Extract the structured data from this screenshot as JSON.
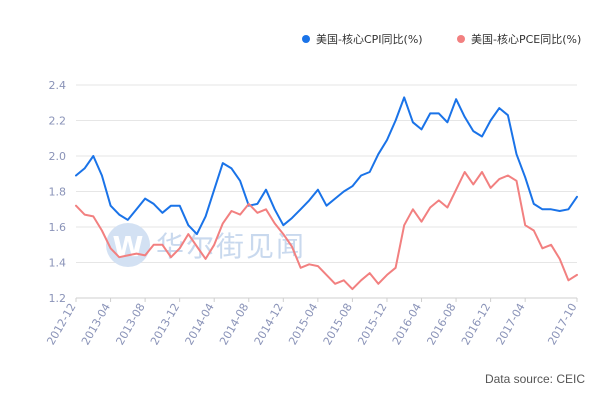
{
  "chart_data": {
    "type": "line",
    "x": [
      "2012-12",
      "2013-01",
      "2013-02",
      "2013-03",
      "2013-04",
      "2013-05",
      "2013-06",
      "2013-07",
      "2013-08",
      "2013-09",
      "2013-10",
      "2013-11",
      "2013-12",
      "2014-01",
      "2014-02",
      "2014-03",
      "2014-04",
      "2014-05",
      "2014-06",
      "2014-07",
      "2014-08",
      "2014-09",
      "2014-10",
      "2014-11",
      "2014-12",
      "2015-01",
      "2015-02",
      "2015-03",
      "2015-04",
      "2015-05",
      "2015-06",
      "2015-07",
      "2015-08",
      "2015-09",
      "2015-10",
      "2015-11",
      "2015-12",
      "2016-01",
      "2016-02",
      "2016-03",
      "2016-04",
      "2016-05",
      "2016-06",
      "2016-07",
      "2016-08",
      "2016-09",
      "2016-10",
      "2016-11",
      "2016-12",
      "2017-01",
      "2017-02",
      "2017-03",
      "2017-04",
      "2017-05",
      "2017-06",
      "2017-07",
      "2017-08",
      "2017-09",
      "2017-10"
    ],
    "x_ticks": [
      "2012-12",
      "2013-04",
      "2013-08",
      "2013-12",
      "2014-04",
      "2014-08",
      "2014-12",
      "2015-04",
      "2015-08",
      "2015-12",
      "2016-04",
      "2016-08",
      "2016-12",
      "2017-04",
      "2017-10"
    ],
    "series": [
      {
        "name": "美国-核心CPI同比(%)",
        "color": "#1a73e8",
        "values": [
          1.89,
          1.93,
          2.0,
          1.89,
          1.72,
          1.67,
          1.64,
          1.7,
          1.76,
          1.73,
          1.68,
          1.72,
          1.72,
          1.61,
          1.56,
          1.66,
          1.81,
          1.96,
          1.93,
          1.86,
          1.72,
          1.73,
          1.81,
          1.7,
          1.61,
          1.65,
          1.7,
          1.75,
          1.81,
          1.72,
          1.76,
          1.8,
          1.83,
          1.89,
          1.91,
          2.01,
          2.09,
          2.2,
          2.33,
          2.19,
          2.15,
          2.24,
          2.24,
          2.19,
          2.32,
          2.22,
          2.14,
          2.11,
          2.2,
          2.27,
          2.23,
          2.01,
          1.88,
          1.73,
          1.7,
          1.7,
          1.69,
          1.7,
          1.77
        ]
      },
      {
        "name": "美国-核心PCE同比(%)",
        "color": "#f28080",
        "values": [
          1.72,
          1.67,
          1.66,
          1.58,
          1.48,
          1.43,
          1.44,
          1.45,
          1.44,
          1.5,
          1.5,
          1.43,
          1.48,
          1.56,
          1.49,
          1.42,
          1.5,
          1.62,
          1.69,
          1.67,
          1.73,
          1.68,
          1.7,
          1.62,
          1.56,
          1.49,
          1.37,
          1.39,
          1.38,
          1.33,
          1.28,
          1.3,
          1.25,
          1.3,
          1.34,
          1.28,
          1.33,
          1.37,
          1.61,
          1.7,
          1.63,
          1.71,
          1.75,
          1.71,
          1.81,
          1.91,
          1.84,
          1.91,
          1.82,
          1.87,
          1.89,
          1.86,
          1.61,
          1.58,
          1.48,
          1.5,
          1.42,
          1.3,
          1.33
        ]
      }
    ],
    "ylim": [
      1.2,
      2.4
    ],
    "yticks": [
      "1.2",
      "1.4",
      "1.6",
      "1.8",
      "2.0",
      "2.2",
      "2.4"
    ],
    "grid": true,
    "legend_position": "top-right",
    "source": "Data source: CEIC",
    "watermark": "华尔街见闻"
  }
}
